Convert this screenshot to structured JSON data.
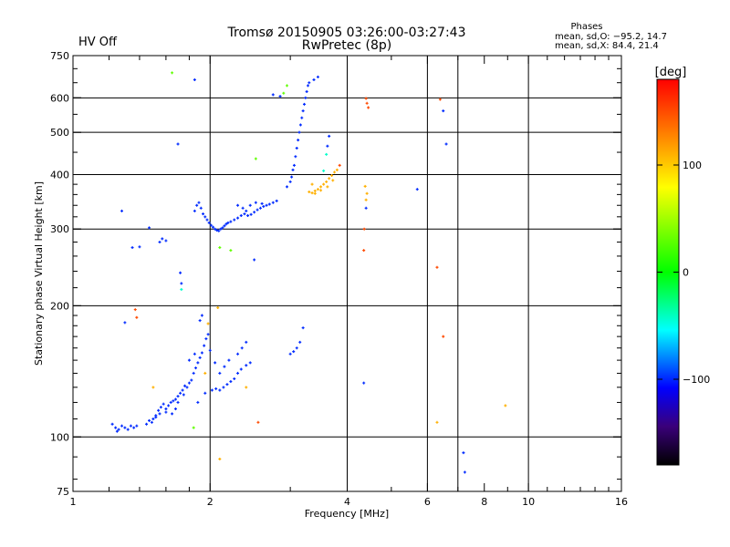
{
  "chart_data": {
    "type": "scatter",
    "title": "Tromsø 20150905 03:26:00-03:27:43",
    "subtitle": "RwPretec (8p)",
    "status_label": "HV Off",
    "status_color": "#d00000",
    "phases": {
      "heading": "Phases",
      "line_o": "mean, sd,O: −95.2, 14.7",
      "line_x": "mean, sd,X:  84.4, 21.4"
    },
    "xlabel": "Frequency [MHz]",
    "ylabel": "Stationary phase Virtual Height [km]",
    "x_scale": "log",
    "y_scale": "log",
    "xlim": [
      1,
      16
    ],
    "ylim": [
      75,
      750
    ],
    "x_ticks": [
      1,
      2,
      4,
      6,
      8,
      10,
      16
    ],
    "x_tick_labels": [
      "1",
      "2",
      "4",
      "6",
      "8",
      "10",
      "16"
    ],
    "x_grid": [
      2,
      4,
      6,
      7,
      10
    ],
    "y_ticks": [
      75,
      100,
      200,
      300,
      400,
      500,
      600,
      750
    ],
    "y_tick_labels": [
      "75",
      "100",
      "200",
      "300",
      "400",
      "500",
      "600",
      "750"
    ],
    "y_grid": [
      100,
      200,
      300,
      400,
      500,
      600
    ],
    "grid": true,
    "colorbar": {
      "label": "[deg]",
      "range": [
        -180,
        180
      ],
      "ticks": [
        100,
        0,
        -100
      ],
      "tick_labels": [
        "100",
        "0",
        "−100"
      ]
    },
    "series": [
      {
        "color_phase": -100,
        "points": [
          [
            1.22,
            107
          ],
          [
            1.24,
            105
          ],
          [
            1.26,
            104
          ],
          [
            1.28,
            106
          ],
          [
            1.3,
            105
          ],
          [
            1.32,
            104
          ],
          [
            1.34,
            106
          ],
          [
            1.36,
            105
          ],
          [
            1.38,
            106
          ],
          [
            1.25,
            103
          ],
          [
            1.45,
            107
          ],
          [
            1.47,
            109
          ],
          [
            1.49,
            108
          ],
          [
            1.5,
            110
          ],
          [
            1.52,
            112
          ],
          [
            1.54,
            115
          ],
          [
            1.56,
            117
          ],
          [
            1.58,
            119
          ],
          [
            1.6,
            116
          ],
          [
            1.62,
            118
          ],
          [
            1.64,
            120
          ],
          [
            1.66,
            121
          ],
          [
            1.68,
            122
          ],
          [
            1.7,
            124
          ],
          [
            1.72,
            126
          ],
          [
            1.74,
            128
          ],
          [
            1.76,
            131
          ],
          [
            1.78,
            130
          ],
          [
            1.8,
            133
          ],
          [
            1.82,
            135
          ],
          [
            1.84,
            140
          ],
          [
            1.86,
            144
          ],
          [
            1.88,
            148
          ],
          [
            1.9,
            152
          ],
          [
            1.92,
            156
          ],
          [
            1.94,
            162
          ],
          [
            1.96,
            168
          ],
          [
            1.98,
            172
          ],
          [
            2.0,
            158
          ],
          [
            1.9,
            185
          ],
          [
            1.92,
            190
          ],
          [
            1.85,
            155
          ],
          [
            1.8,
            150
          ],
          [
            1.75,
            125
          ],
          [
            1.7,
            120
          ],
          [
            1.68,
            116
          ],
          [
            1.65,
            113
          ],
          [
            1.6,
            114
          ],
          [
            1.55,
            113
          ],
          [
            1.52,
            111
          ],
          [
            2.02,
            128
          ],
          [
            2.06,
            129
          ],
          [
            2.1,
            128
          ],
          [
            2.14,
            130
          ],
          [
            2.18,
            132
          ],
          [
            2.22,
            134
          ],
          [
            2.26,
            136
          ],
          [
            2.3,
            140
          ],
          [
            2.34,
            143
          ],
          [
            2.4,
            146
          ],
          [
            2.45,
            148
          ],
          [
            2.1,
            140
          ],
          [
            2.15,
            145
          ],
          [
            2.2,
            150
          ],
          [
            2.3,
            155
          ],
          [
            2.35,
            160
          ],
          [
            2.4,
            165
          ],
          [
            3.0,
            155
          ],
          [
            3.05,
            157
          ],
          [
            3.1,
            160
          ],
          [
            3.15,
            165
          ],
          [
            3.2,
            178
          ],
          [
            1.88,
            120
          ],
          [
            1.95,
            126
          ],
          [
            2.05,
            148
          ],
          [
            1.55,
            280
          ],
          [
            1.57,
            285
          ],
          [
            1.6,
            282
          ],
          [
            1.35,
            272
          ],
          [
            1.4,
            273
          ],
          [
            1.28,
            330
          ],
          [
            1.47,
            302
          ],
          [
            1.85,
            330
          ],
          [
            1.87,
            340
          ],
          [
            1.89,
            345
          ],
          [
            1.91,
            335
          ],
          [
            1.93,
            325
          ],
          [
            1.95,
            320
          ],
          [
            1.97,
            315
          ],
          [
            1.99,
            310
          ],
          [
            2.01,
            306
          ],
          [
            2.03,
            303
          ],
          [
            2.05,
            300
          ],
          [
            2.07,
            298
          ],
          [
            2.09,
            297
          ],
          [
            2.11,
            300
          ],
          [
            2.13,
            302
          ],
          [
            2.15,
            305
          ],
          [
            2.17,
            308
          ],
          [
            2.19,
            310
          ],
          [
            2.22,
            312
          ],
          [
            2.26,
            315
          ],
          [
            2.3,
            318
          ],
          [
            2.34,
            322
          ],
          [
            2.38,
            325
          ],
          [
            2.42,
            322
          ],
          [
            2.46,
            324
          ],
          [
            2.5,
            328
          ],
          [
            2.54,
            332
          ],
          [
            2.58,
            335
          ],
          [
            2.62,
            338
          ],
          [
            2.66,
            340
          ],
          [
            2.7,
            342
          ],
          [
            2.75,
            345
          ],
          [
            2.8,
            348
          ],
          [
            2.3,
            340
          ],
          [
            2.36,
            335
          ],
          [
            2.4,
            330
          ],
          [
            2.45,
            340
          ],
          [
            2.52,
            345
          ],
          [
            2.6,
            343
          ],
          [
            2.95,
            375
          ],
          [
            3.0,
            385
          ],
          [
            3.02,
            395
          ],
          [
            3.04,
            410
          ],
          [
            3.06,
            420
          ],
          [
            3.08,
            440
          ],
          [
            3.1,
            460
          ],
          [
            3.12,
            480
          ],
          [
            3.14,
            500
          ],
          [
            3.16,
            520
          ],
          [
            3.18,
            540
          ],
          [
            3.2,
            560
          ],
          [
            3.22,
            580
          ],
          [
            3.24,
            600
          ],
          [
            3.26,
            620
          ],
          [
            3.28,
            640
          ],
          [
            3.3,
            650
          ],
          [
            3.38,
            660
          ],
          [
            3.45,
            670
          ],
          [
            1.72,
            238
          ],
          [
            1.73,
            225
          ],
          [
            1.7,
            470
          ],
          [
            1.85,
            660
          ],
          [
            2.5,
            255
          ],
          [
            2.75,
            610
          ],
          [
            2.85,
            605
          ],
          [
            3.65,
            490
          ],
          [
            3.62,
            465
          ],
          [
            4.4,
            335
          ],
          [
            6.5,
            560
          ],
          [
            6.6,
            470
          ],
          [
            7.2,
            92
          ],
          [
            7.25,
            83
          ],
          [
            4.35,
            133
          ],
          [
            5.7,
            370
          ],
          [
            1.3,
            183
          ]
        ]
      },
      {
        "color_phase": 110,
        "points": [
          [
            3.3,
            365
          ],
          [
            3.35,
            363
          ],
          [
            3.4,
            367
          ],
          [
            3.45,
            370
          ],
          [
            3.5,
            375
          ],
          [
            3.55,
            380
          ],
          [
            3.6,
            385
          ],
          [
            3.65,
            392
          ],
          [
            3.7,
            398
          ],
          [
            3.75,
            405
          ],
          [
            3.5,
            368
          ],
          [
            3.4,
            362
          ],
          [
            3.62,
            375
          ],
          [
            3.72,
            388
          ],
          [
            3.8,
            410
          ],
          [
            3.35,
            380
          ],
          [
            4.4,
            350
          ],
          [
            4.42,
            362
          ],
          [
            4.38,
            376
          ],
          [
            2.4,
            130
          ],
          [
            1.95,
            140
          ],
          [
            2.08,
            198
          ],
          [
            1.98,
            182
          ],
          [
            1.5,
            130
          ],
          [
            8.9,
            118
          ],
          [
            6.3,
            108
          ],
          [
            2.1,
            89
          ]
        ]
      },
      {
        "color_phase": 150,
        "points": [
          [
            4.4,
            598
          ],
          [
            4.42,
            583
          ],
          [
            4.45,
            570
          ],
          [
            6.4,
            595
          ],
          [
            6.3,
            245
          ],
          [
            4.35,
            268
          ],
          [
            4.36,
            300
          ],
          [
            1.38,
            188
          ],
          [
            1.37,
            196
          ],
          [
            6.5,
            170
          ],
          [
            2.55,
            108
          ],
          [
            3.85,
            420
          ]
        ]
      },
      {
        "color_phase": 30,
        "points": [
          [
            1.65,
            685
          ],
          [
            2.52,
            435
          ],
          [
            2.9,
            615
          ],
          [
            2.95,
            640
          ],
          [
            2.22,
            268
          ],
          [
            1.84,
            105
          ],
          [
            2.1,
            272
          ]
        ]
      },
      {
        "color_phase": -40,
        "points": [
          [
            3.6,
            445
          ],
          [
            3.55,
            408
          ],
          [
            1.73,
            218
          ]
        ]
      }
    ]
  }
}
